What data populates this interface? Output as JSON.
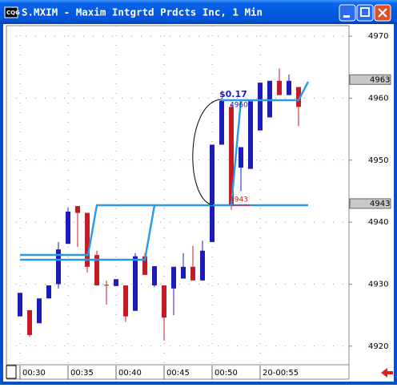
{
  "chart_data": {
    "type": "candlestick",
    "title": "S.MXIM - Maxim Intgrtd Prdcts Inc, 1 Min",
    "categories": [
      "00:30",
      null,
      null,
      null,
      null,
      "00:35",
      null,
      null,
      null,
      null,
      "00:40",
      null,
      null,
      null,
      null,
      "00:45",
      null,
      null,
      null,
      null,
      "00:50",
      null,
      null,
      null,
      null,
      "20-00:55",
      null,
      null,
      null,
      null
    ],
    "open": [
      4924.8,
      4925.8,
      4923.7,
      4927.7,
      4930.0,
      4936.5,
      4942.6,
      4941.5,
      4934.7,
      4929.9,
      4929.7,
      4929.8,
      4925.7,
      4934.5,
      4929.8,
      4929.8,
      4929.3,
      4930.9,
      4932.8,
      4930.6,
      4936.8,
      4952.5,
      4958.6,
      4948.8,
      4948.6,
      4954.8,
      4956.9,
      4962.8,
      4960.5,
      4961.8
    ],
    "high": [
      4928.6,
      4925.8,
      4927.7,
      4929.8,
      4936.8,
      4942.4,
      4942.6,
      4941.5,
      4935.4,
      4930.6,
      4930.8,
      4929.8,
      4935.0,
      4935.0,
      4932.9,
      4929.8,
      4932.8,
      4935.0,
      4936.2,
      4937.0,
      4952.5,
      4960.0,
      4959.0,
      4952.1,
      4959.5,
      4962.5,
      4962.8,
      4964.8,
      4963.8,
      4961.8
    ],
    "low": [
      4924.8,
      4921.5,
      4923.7,
      4927.7,
      4929.3,
      4936.5,
      4936.0,
      4931.9,
      4929.8,
      4926.7,
      4929.7,
      4923.9,
      4925.7,
      4931.5,
      4929.5,
      4920.9,
      4925.0,
      4930.9,
      4930.6,
      4930.6,
      4936.8,
      4952.5,
      4942.0,
      4945.0,
      4948.6,
      4954.8,
      4956.9,
      4960.5,
      4960.5,
      4955.5
    ],
    "close": [
      4928.6,
      4921.8,
      4927.7,
      4929.8,
      4935.6,
      4941.7,
      4941.5,
      4932.8,
      4929.8,
      4929.9,
      4930.8,
      4924.8,
      4934.5,
      4931.5,
      4932.9,
      4924.6,
      4932.8,
      4932.8,
      4930.6,
      4935.4,
      4952.5,
      4959.6,
      4942.8,
      4952.1,
      4959.5,
      4962.5,
      4962.8,
      4960.5,
      4962.8,
      4958.6
    ],
    "up_color": "#1c1cb8",
    "down_color": "#c41c24",
    "ylim": [
      4917,
      4971.7
    ],
    "yticks": [
      4920,
      4930,
      4940,
      4950,
      4960,
      4970
    ],
    "grid": true,
    "price_markers": [
      4963,
      4943
    ],
    "annotations": [
      "$0.17",
      4960,
      4943
    ]
  }
}
